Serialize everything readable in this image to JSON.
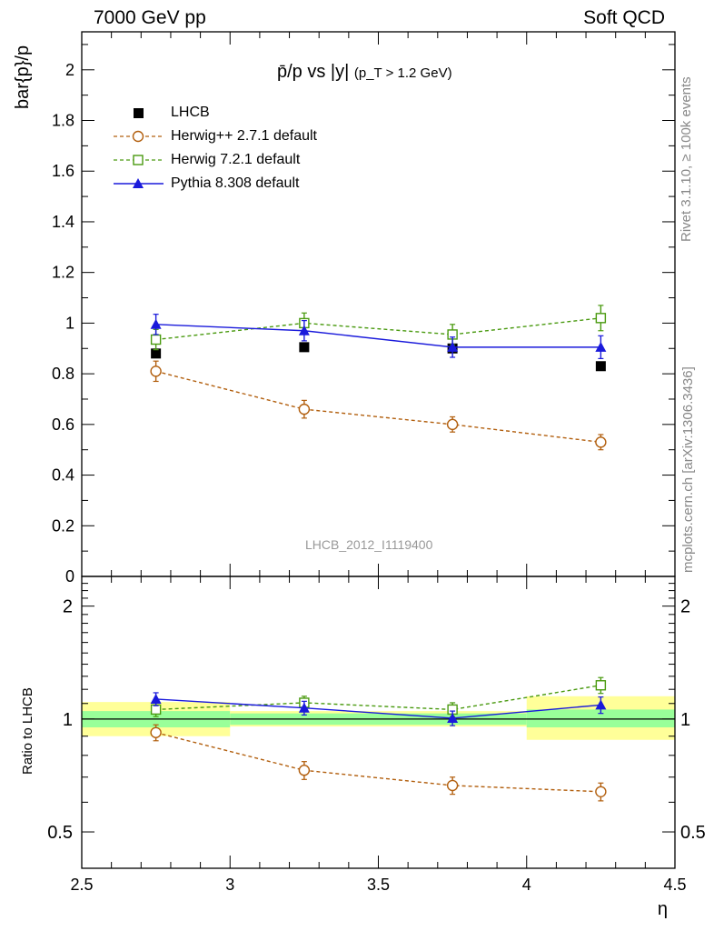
{
  "header": {
    "left": "7000 GeV pp",
    "right": "Soft QCD",
    "rivet": "Rivet 3.1.10, ≥ 100k events",
    "mcplots": "mcplots.cern.ch [arXiv:1306.3436]"
  },
  "chart_data": [
    {
      "type": "line",
      "panel": "main",
      "title": "p̄/p vs |y|",
      "title_sub": "(p_T > 1.2 GeV)",
      "ylabel": "bar{p}/p",
      "xlabel": "",
      "watermark": "LHCB_2012_I1119400",
      "xlim": [
        2.5,
        4.5
      ],
      "ylim": [
        0,
        2.15
      ],
      "yticks": [
        0,
        0.2,
        0.4,
        0.6,
        0.8,
        1,
        1.2,
        1.4,
        1.6,
        1.8,
        2
      ],
      "ytick_labels": [
        "0",
        "0.2",
        "0.4",
        "0.6",
        "0.8",
        "1",
        "1.2",
        "1.4",
        "1.6",
        "1.8",
        "2"
      ],
      "x": [
        2.75,
        3.25,
        3.75,
        4.25
      ],
      "legend_position": "top-left",
      "series": [
        {
          "name": "LHCB",
          "color": "#000000",
          "marker": "square",
          "line": "none",
          "values": [
            0.88,
            0.905,
            0.9,
            0.83
          ],
          "errors": [
            0.01,
            0.01,
            0.01,
            0.01
          ]
        },
        {
          "name": "Herwig++ 2.7.1 default",
          "color": "#b25f0e",
          "marker": "open-circle",
          "line": "dashed",
          "values": [
            0.81,
            0.66,
            0.6,
            0.53
          ],
          "errors": [
            0.04,
            0.035,
            0.03,
            0.03
          ]
        },
        {
          "name": "Herwig 7.2.1 default",
          "color": "#4a9a10",
          "marker": "open-square",
          "line": "dashed",
          "values": [
            0.935,
            1.0,
            0.955,
            1.02
          ],
          "errors": [
            0.04,
            0.04,
            0.04,
            0.05
          ]
        },
        {
          "name": "Pythia 8.308 default",
          "color": "#1a1adb",
          "marker": "triangle",
          "line": "solid",
          "values": [
            0.995,
            0.97,
            0.905,
            0.905
          ],
          "errors": [
            0.04,
            0.04,
            0.04,
            0.045
          ]
        }
      ]
    },
    {
      "type": "line",
      "panel": "ratio",
      "ylabel": "Ratio to LHCB",
      "xlabel": "η",
      "xlim": [
        2.5,
        4.5
      ],
      "yscale": "log",
      "ylim": [
        0.4,
        2.4
      ],
      "yticks": [
        0.5,
        1,
        2
      ],
      "ytick_labels": [
        "0.5",
        "1",
        "2"
      ],
      "xticks": [
        2.5,
        3,
        3.5,
        4,
        4.5
      ],
      "xtick_labels": [
        "2.5",
        "3",
        "3.5",
        "4",
        "4.5"
      ],
      "x": [
        2.75,
        3.25,
        3.75,
        4.25
      ],
      "bins": [
        [
          2.5,
          3.0
        ],
        [
          3.0,
          3.5
        ],
        [
          3.5,
          4.0
        ],
        [
          4.0,
          4.5
        ]
      ],
      "band_inner": [
        [
          0.95,
          1.05
        ],
        [
          0.965,
          1.035
        ],
        [
          0.965,
          1.035
        ],
        [
          0.95,
          1.06
        ]
      ],
      "band_outer": [
        [
          0.9,
          1.11
        ],
        [
          0.955,
          1.05
        ],
        [
          0.955,
          1.05
        ],
        [
          0.88,
          1.15
        ]
      ],
      "series": [
        {
          "name": "Herwig++ 2.7.1 default",
          "color": "#b25f0e",
          "marker": "open-circle",
          "line": "dashed",
          "values": [
            0.92,
            0.73,
            0.665,
            0.64
          ],
          "errors": [
            0.045,
            0.04,
            0.035,
            0.035
          ]
        },
        {
          "name": "Herwig 7.2.1 default",
          "color": "#4a9a10",
          "marker": "open-square",
          "line": "dashed",
          "values": [
            1.06,
            1.105,
            1.06,
            1.23
          ],
          "errors": [
            0.045,
            0.045,
            0.045,
            0.06
          ]
        },
        {
          "name": "Pythia 8.308 default",
          "color": "#1a1adb",
          "marker": "triangle",
          "line": "solid",
          "values": [
            1.13,
            1.07,
            1.005,
            1.09
          ],
          "errors": [
            0.045,
            0.045,
            0.045,
            0.055
          ]
        }
      ]
    }
  ]
}
